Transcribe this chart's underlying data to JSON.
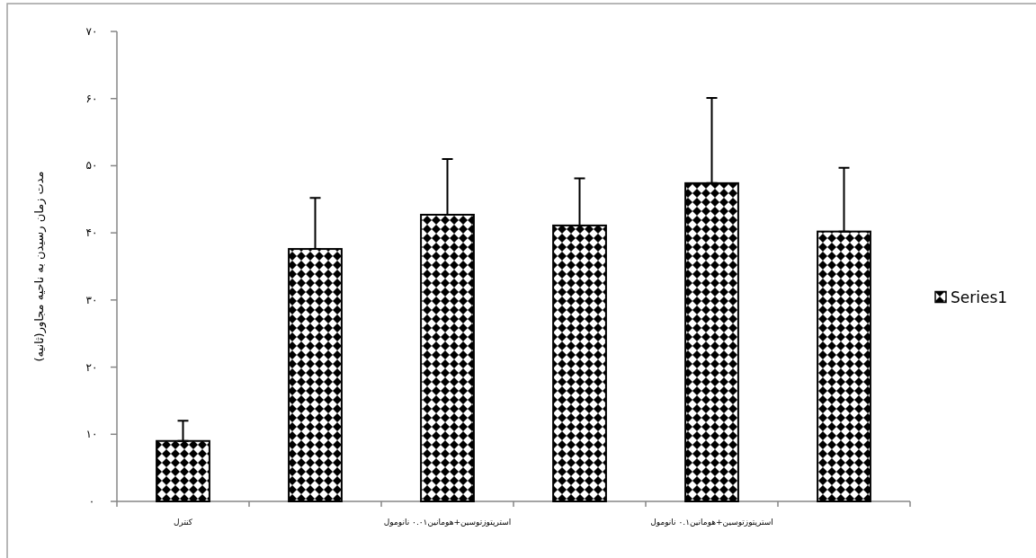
{
  "chart_data": {
    "type": "bar",
    "ylabel": "مدت زمان رسیدن به ناحیه مجاور(ثانیه)",
    "categories": [
      "کنترل",
      null,
      "استرپتوزتوسین+هومانین۰.۰۱ نانومول",
      null,
      "استرپتوزتوسین+هومانین۰.۱ نانومول",
      null
    ],
    "series": [
      {
        "name": "Series1",
        "color": "#000000",
        "values": [
          9,
          37.6,
          42.7,
          41.1,
          47.4,
          40.2
        ],
        "errors": [
          [
            9,
            12
          ],
          [
            37.6,
            45.2
          ],
          [
            42.7,
            51
          ],
          [
            41.1,
            48.1
          ],
          [
            47.4,
            60.1
          ],
          [
            40.2,
            49.7
          ]
        ]
      }
    ],
    "ylim": [
      0,
      70
    ],
    "yticks": [
      {
        "value": 0,
        "label": "۰"
      },
      {
        "value": 10,
        "label": "۱۰"
      },
      {
        "value": 20,
        "label": "۲۰"
      },
      {
        "value": 30,
        "label": "۳۰"
      },
      {
        "value": 40,
        "label": "۴۰"
      },
      {
        "value": 50,
        "label": "۵۰"
      },
      {
        "value": 60,
        "label": "۶۰"
      },
      {
        "value": 70,
        "label": "۷۰"
      }
    ],
    "legend": "right"
  }
}
